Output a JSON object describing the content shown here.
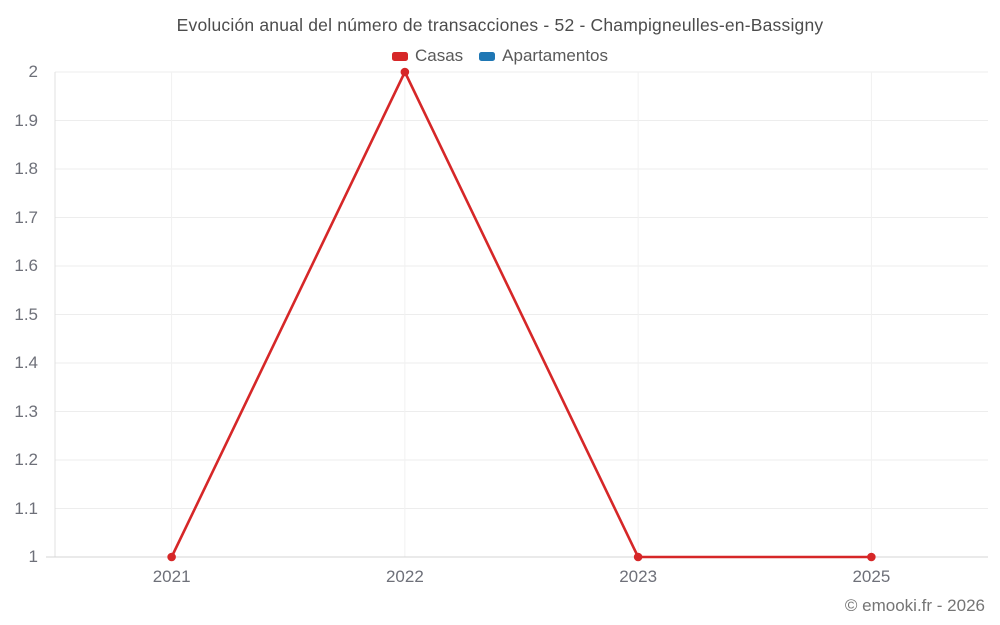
{
  "title": "Evolución anual del número de transacciones - 52 - Champigneulles-en-Bassigny",
  "footer": "© emooki.fr - 2026",
  "colors": {
    "casas": "#d62728",
    "apartamentos": "#1f77b4",
    "grid_horizontal": "#ededed",
    "grid_vertical": "#f1f1f1",
    "axis_bottom": "#d4d4d4",
    "axis_left": "#e0e0e0",
    "tick_text": "#6e7079",
    "title_text": "#4c4c4c",
    "footer_text": "#757575"
  },
  "chart_data": {
    "type": "line",
    "title": "Evolución anual del número de transacciones - 52 - Champigneulles-en-Bassigny",
    "xlabel": "",
    "ylabel": "",
    "categories": [
      "2021",
      "2022",
      "2023",
      "2025"
    ],
    "series": [
      {
        "name": "Casas",
        "color": "#d62728",
        "values": [
          1,
          2,
          1,
          1
        ]
      },
      {
        "name": "Apartamentos",
        "color": "#1f77b4",
        "values": []
      }
    ],
    "ylim": [
      1,
      2
    ],
    "ytick_labels": [
      "1",
      "1.1",
      "1.2",
      "1.3",
      "1.4",
      "1.5",
      "1.6",
      "1.7",
      "1.8",
      "1.9",
      "2"
    ],
    "grid": true,
    "legend_position": "top",
    "legend": [
      "Casas",
      "Apartamentos"
    ]
  }
}
